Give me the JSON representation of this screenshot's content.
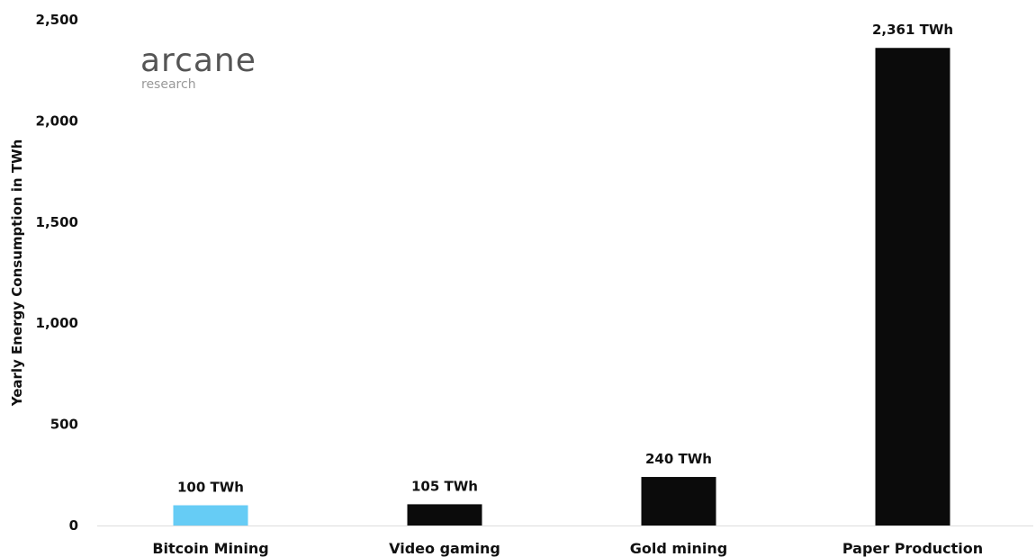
{
  "logo": {
    "name": "arcane",
    "sub": "research"
  },
  "chart_data": {
    "type": "bar",
    "title": "",
    "xlabel": "",
    "ylabel": "Yearly Energy Consumption in TWh",
    "ylim": [
      0,
      2500
    ],
    "yticks": [
      "0",
      "500",
      "1,000",
      "1,500",
      "2,000",
      "2,500"
    ],
    "ytick_values": [
      0,
      500,
      1000,
      1500,
      2000,
      2500
    ],
    "grid": false,
    "categories": [
      "Bitcoin Mining",
      "Video gaming",
      "Gold mining",
      "Paper Production"
    ],
    "values": [
      100,
      105,
      240,
      2361
    ],
    "data_labels": [
      "100 TWh",
      "105 TWh",
      "240 TWh",
      "2,361 TWh"
    ],
    "colors": [
      "#66ccf5",
      "#0b0b0b",
      "#0b0b0b",
      "#0b0b0b"
    ],
    "baseline_color": "#dddddd"
  }
}
